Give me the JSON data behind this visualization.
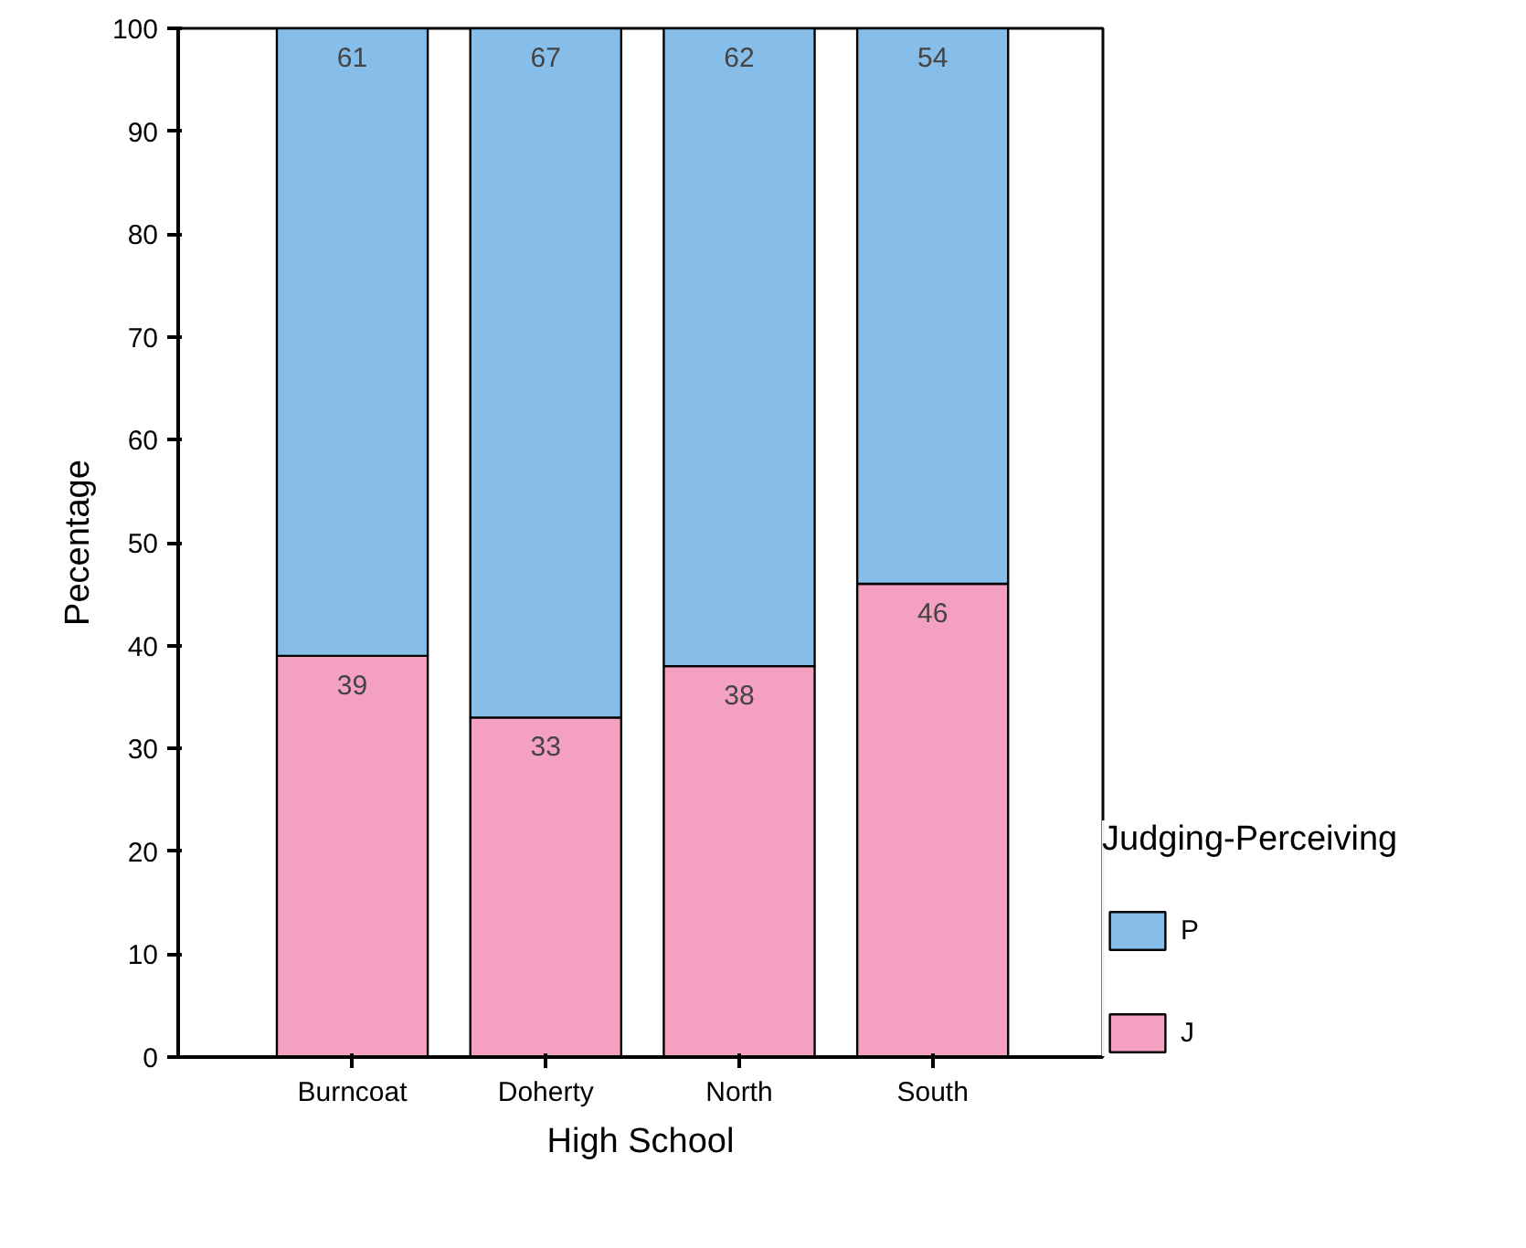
{
  "chart_data": {
    "type": "bar",
    "stacked": true,
    "categories": [
      "Burncoat",
      "Doherty",
      "North",
      "South"
    ],
    "series": [
      {
        "name": "J",
        "color": "#f4a0c0",
        "values": [
          39,
          33,
          38,
          46
        ]
      },
      {
        "name": "P",
        "color": "#87bde9",
        "values": [
          61,
          67,
          62,
          54
        ]
      }
    ],
    "xlabel": "High School",
    "ylabel": "Pecentage",
    "legend_title": "Judging-Perceiving",
    "legend": "right",
    "ylim": [
      0,
      100
    ],
    "yticks": [
      0,
      10,
      20,
      30,
      40,
      50,
      60,
      70,
      80,
      90,
      100
    ],
    "data_labels": true,
    "grid": false
  }
}
